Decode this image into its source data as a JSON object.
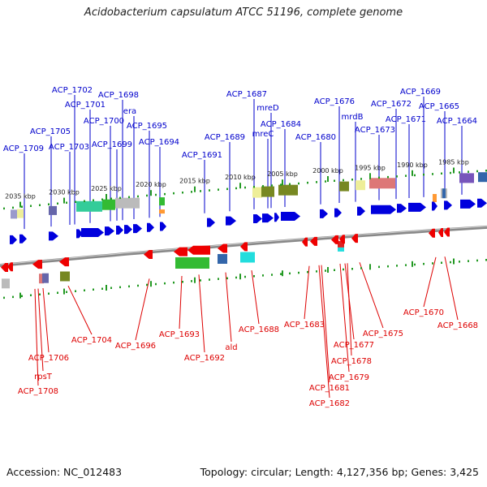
{
  "title": "Acidobacterium capsulatum ATCC 51196, complete genome",
  "footer": {
    "accession": "Accession: NC_012483",
    "summary": "Topology: circular; Length: 4,127,356 bp; Genes: 3,425"
  },
  "colors": {
    "forward": "#0000dd",
    "reverse": "#ee0000",
    "forward_label": "#0000cc",
    "reverse_label": "#dd0000",
    "tick": "#229922",
    "backbone": "#888888"
  },
  "ticks": [
    "2035 kbp",
    "2030 kbp",
    "2025 kbp",
    "2020 kbp",
    "2015 kbp",
    "2010 kbp",
    "2005 kbp",
    "2000 kbp",
    "1995 kbp",
    "1990 kbp",
    "1985 kbp"
  ],
  "forward_labels": [
    "ACP_1709",
    "ACP_1705",
    "ACP_1703",
    "ACP_1702",
    "ACP_1701",
    "ACP_1700",
    "ACP_1699",
    "ACP_1698",
    "era",
    "ACP_1695",
    "ACP_1694",
    "ACP_1691",
    "ACP_1689",
    "ACP_1687",
    "mreD",
    "mreC",
    "ACP_1684",
    "ACP_1680",
    "ACP_1676",
    "mrdB",
    "ACP_1673",
    "ACP_1672",
    "ACP_1671",
    "ACP_1669",
    "ACP_1665",
    "ACP_1664"
  ],
  "reverse_labels": [
    "ACP_1704",
    "ACP_1706",
    "rpsT",
    "ACP_1708",
    "ACP_1696",
    "ACP_1693",
    "ACP_1692",
    "ald",
    "ACP_1688",
    "ACP_1683",
    "ACP_1681",
    "ACP_1682",
    "ACP_1677",
    "ACP_1678",
    "ACP_1679",
    "ACP_1675",
    "ACP_1670",
    "ACP_1668"
  ]
}
